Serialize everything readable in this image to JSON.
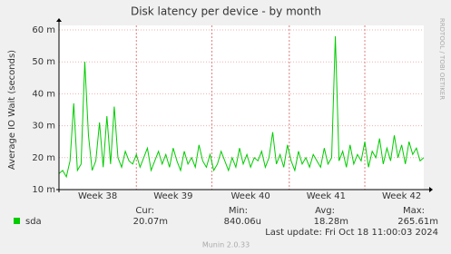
{
  "chart_data": {
    "type": "line",
    "title": "Disk latency per device - by month",
    "y_label": "Average IO Wait (seconds)",
    "side_label": "RRDTOOL / TOBI OETIKER",
    "footer": "Munin 2.0.33",
    "last_update": "Last update: Fri Oct 18 11:00:03 2024",
    "ylim": [
      0.01,
      0.06
    ],
    "yticks": [
      {
        "value": 0.01,
        "label": "10 m"
      },
      {
        "value": 0.02,
        "label": "20 m"
      },
      {
        "value": 0.03,
        "label": "30 m"
      },
      {
        "value": 0.04,
        "label": "40 m"
      },
      {
        "value": 0.05,
        "label": "50 m"
      },
      {
        "value": 0.06,
        "label": "60 m"
      }
    ],
    "xlim": [
      0,
      99
    ],
    "xticks": [
      {
        "value": 10.5,
        "label": "Week 38"
      },
      {
        "value": 31,
        "label": "Week 39"
      },
      {
        "value": 52,
        "label": "Week 40"
      },
      {
        "value": 72.5,
        "label": "Week 41"
      },
      {
        "value": 93,
        "label": "Week 42"
      }
    ],
    "week_starts": [
      21,
      41.5,
      62.5,
      83
    ],
    "grid": true,
    "stat_headers": [
      "Cur:",
      "Min:",
      "Avg:",
      "Max:"
    ],
    "series": [
      {
        "name": "sda",
        "color": "#00cc00",
        "stats": [
          "20.07m",
          "840.06u",
          "18.28m",
          "265.61m"
        ],
        "values": [
          0.015,
          0.016,
          0.014,
          0.019,
          0.037,
          0.016,
          0.018,
          0.05,
          0.027,
          0.016,
          0.019,
          0.031,
          0.017,
          0.033,
          0.018,
          0.036,
          0.02,
          0.017,
          0.022,
          0.019,
          0.018,
          0.021,
          0.017,
          0.02,
          0.023,
          0.016,
          0.019,
          0.022,
          0.018,
          0.021,
          0.017,
          0.023,
          0.019,
          0.016,
          0.022,
          0.018,
          0.02,
          0.017,
          0.024,
          0.019,
          0.017,
          0.021,
          0.016,
          0.018,
          0.022,
          0.019,
          0.016,
          0.02,
          0.017,
          0.023,
          0.018,
          0.021,
          0.017,
          0.02,
          0.019,
          0.022,
          0.017,
          0.02,
          0.028,
          0.018,
          0.021,
          0.017,
          0.024,
          0.019,
          0.016,
          0.022,
          0.018,
          0.02,
          0.017,
          0.021,
          0.019,
          0.017,
          0.023,
          0.018,
          0.02,
          0.058,
          0.019,
          0.022,
          0.017,
          0.024,
          0.018,
          0.021,
          0.019,
          0.025,
          0.017,
          0.022,
          0.02,
          0.026,
          0.018,
          0.023,
          0.019,
          0.027,
          0.02,
          0.024,
          0.018,
          0.025,
          0.021,
          0.023,
          0.019,
          0.02
        ]
      }
    ]
  }
}
